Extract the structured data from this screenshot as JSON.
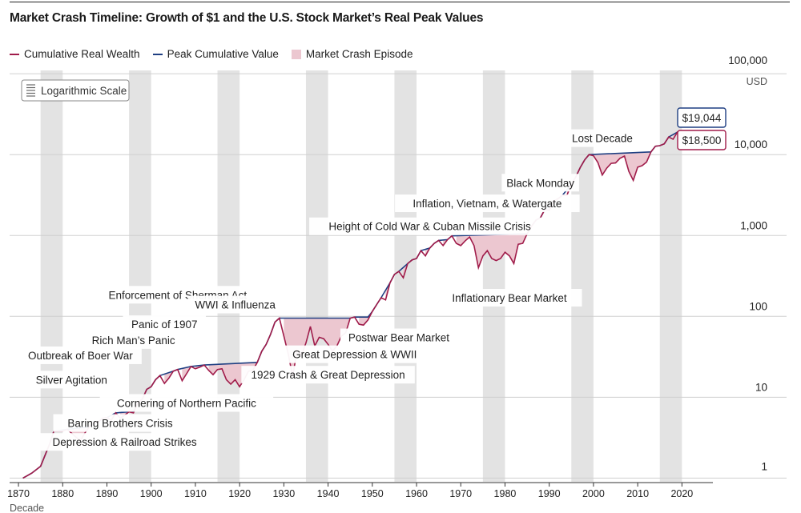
{
  "title": "Market Crash Timeline: Growth of $1 and the U.S. Stock Market’s Real Peak Values",
  "legend": {
    "real_wealth": "Cumulative Real Wealth",
    "peak_value": "Peak Cumulative Value",
    "crash_episode": "Market Crash Episode"
  },
  "colors": {
    "real_wealth": "#a01c4a",
    "peak_value": "#1f3f82",
    "crash_fill": "#ecc7d0",
    "decade_band": "#e3e3e3",
    "gridline": "#d0d0d0"
  },
  "scale_button": {
    "label": "Logarithmic Scale",
    "icon": "list-lines-icon"
  },
  "chart_data": {
    "type": "line",
    "title": "Market Crash Timeline: Growth of $1 and the U.S. Stock Market’s Real Peak Values",
    "xlabel": "Decade",
    "ylabel": "USD",
    "yscale": "log",
    "xlim": [
      1868,
      2027
    ],
    "ylim": [
      0.9,
      110000
    ],
    "grid": true,
    "legend_position": "top-left",
    "x_ticks": [
      1870,
      1880,
      1890,
      1900,
      1910,
      1920,
      1930,
      1940,
      1950,
      1960,
      1970,
      1980,
      1990,
      2000,
      2010,
      2020
    ],
    "x_tick_labels": [
      "1870",
      "1880",
      "1890",
      "1900",
      "1910",
      "1920",
      "1930",
      "1940",
      "1950",
      "1960",
      "1970",
      "1980",
      "1990",
      "2000",
      "2010",
      "2020"
    ],
    "y_ticks": [
      1,
      10,
      100,
      1000,
      10000,
      100000
    ],
    "y_tick_labels": [
      "1",
      "10",
      "100",
      "1,000",
      "10,000",
      "100,000"
    ],
    "y_unit_label": "USD",
    "end_labels": {
      "peak": "$19,044",
      "real": "$18,500"
    },
    "end_values": {
      "peak": 19044,
      "real": 18500
    },
    "series": [
      {
        "name": "Cumulative Real Wealth",
        "points": [
          [
            1871,
            1.0
          ],
          [
            1873,
            1.15
          ],
          [
            1875,
            1.4
          ],
          [
            1877,
            2.6
          ],
          [
            1878,
            3.8
          ],
          [
            1880,
            3.8
          ],
          [
            1881,
            4.0
          ],
          [
            1882,
            3.6
          ],
          [
            1883,
            3.2
          ],
          [
            1884,
            2.9
          ],
          [
            1885,
            3.6
          ],
          [
            1886,
            4.3
          ],
          [
            1887,
            4.8
          ],
          [
            1888,
            4.9
          ],
          [
            1889,
            5.5
          ],
          [
            1890,
            5.6
          ],
          [
            1891,
            5.2
          ],
          [
            1892,
            6.4
          ],
          [
            1893,
            5.5
          ],
          [
            1894,
            6.0
          ],
          [
            1895,
            6.6
          ],
          [
            1896,
            6.4
          ],
          [
            1897,
            8.5
          ],
          [
            1898,
            9.5
          ],
          [
            1899,
            12.5
          ],
          [
            1900,
            13.5
          ],
          [
            1901,
            16.5
          ],
          [
            1902,
            18.5
          ],
          [
            1903,
            14.8
          ],
          [
            1904,
            17.2
          ],
          [
            1905,
            21.0
          ],
          [
            1906,
            22.0
          ],
          [
            1907,
            16.0
          ],
          [
            1908,
            19.5
          ],
          [
            1909,
            24.0
          ],
          [
            1910,
            22.5
          ],
          [
            1911,
            23.5
          ],
          [
            1912,
            25.0
          ],
          [
            1913,
            21.5
          ],
          [
            1914,
            19.0
          ],
          [
            1915,
            22.0
          ],
          [
            1916,
            22.5
          ],
          [
            1917,
            16.5
          ],
          [
            1918,
            14.5
          ],
          [
            1919,
            16.5
          ],
          [
            1920,
            13.5
          ],
          [
            1921,
            16.5
          ],
          [
            1922,
            21.0
          ],
          [
            1923,
            21.5
          ],
          [
            1924,
            27.0
          ],
          [
            1925,
            37.0
          ],
          [
            1926,
            45.0
          ],
          [
            1927,
            60.0
          ],
          [
            1928,
            85.0
          ],
          [
            1929,
            95.0
          ],
          [
            1930,
            57.0
          ],
          [
            1931,
            34.0
          ],
          [
            1932,
            18.0
          ],
          [
            1933,
            38.0
          ],
          [
            1934,
            33.0
          ],
          [
            1935,
            47.0
          ],
          [
            1936,
            75.0
          ],
          [
            1937,
            43.0
          ],
          [
            1938,
            55.0
          ],
          [
            1939,
            53.0
          ],
          [
            1940,
            45.0
          ],
          [
            1941,
            37.0
          ],
          [
            1942,
            43.0
          ],
          [
            1943,
            57.0
          ],
          [
            1944,
            63.0
          ],
          [
            1945,
            95.0
          ],
          [
            1946,
            98.0
          ],
          [
            1947,
            80.0
          ],
          [
            1948,
            78.0
          ],
          [
            1949,
            90.0
          ],
          [
            1950,
            115.0
          ],
          [
            1951,
            140.0
          ],
          [
            1952,
            170.0
          ],
          [
            1953,
            160.0
          ],
          [
            1954,
            260.0
          ],
          [
            1955,
            330.0
          ],
          [
            1956,
            360.0
          ],
          [
            1957,
            300.0
          ],
          [
            1958,
            450.0
          ],
          [
            1959,
            500.0
          ],
          [
            1960,
            520.0
          ],
          [
            1961,
            650.0
          ],
          [
            1962,
            560.0
          ],
          [
            1963,
            700.0
          ],
          [
            1964,
            800.0
          ],
          [
            1965,
            870.0
          ],
          [
            1966,
            750.0
          ],
          [
            1967,
            890.0
          ],
          [
            1968,
            990.0
          ],
          [
            1969,
            800.0
          ],
          [
            1970,
            750.0
          ],
          [
            1971,
            860.0
          ],
          [
            1972,
            960.0
          ],
          [
            1973,
            750.0
          ],
          [
            1974,
            400.0
          ],
          [
            1975,
            560.0
          ],
          [
            1976,
            650.0
          ],
          [
            1977,
            520.0
          ],
          [
            1978,
            490.0
          ],
          [
            1979,
            520.0
          ],
          [
            1980,
            620.0
          ],
          [
            1981,
            560.0
          ],
          [
            1982,
            450.0
          ],
          [
            1983,
            780.0
          ],
          [
            1984,
            800.0
          ],
          [
            1985,
            1050.0
          ],
          [
            1986,
            1300.0
          ],
          [
            1987,
            1550.0
          ],
          [
            1988,
            1650.0
          ],
          [
            1989,
            2100.0
          ],
          [
            1990,
            2050.0
          ],
          [
            1991,
            2650.0
          ],
          [
            1992,
            2850.0
          ],
          [
            1993,
            3150.0
          ],
          [
            1994,
            3150.0
          ],
          [
            1995,
            4300.0
          ],
          [
            1996,
            5300.0
          ],
          [
            1997,
            6900.0
          ],
          [
            1998,
            8600.0
          ],
          [
            1999,
            10000.0
          ],
          [
            2000,
            9700.0
          ],
          [
            2001,
            8000.0
          ],
          [
            2002,
            5600.0
          ],
          [
            2003,
            6800.0
          ],
          [
            2004,
            7800.0
          ],
          [
            2005,
            7900.0
          ],
          [
            2006,
            9000.0
          ],
          [
            2007,
            9600.0
          ],
          [
            2008,
            6200.0
          ],
          [
            2009,
            4800.0
          ],
          [
            2010,
            7000.0
          ],
          [
            2011,
            7300.0
          ],
          [
            2012,
            8100.0
          ],
          [
            2013,
            10800.0
          ],
          [
            2014,
            12700.0
          ],
          [
            2015,
            12900.0
          ],
          [
            2016,
            13600.0
          ],
          [
            2017,
            16500.0
          ],
          [
            2018,
            15500.0
          ],
          [
            2019,
            19044.0
          ],
          [
            2020,
            18500.0
          ]
        ]
      },
      {
        "name": "Peak Cumulative Value",
        "points": [
          [
            1871,
            1.0
          ],
          [
            1873,
            1.15
          ],
          [
            1875,
            1.4
          ],
          [
            1877,
            2.6
          ],
          [
            1878,
            3.8
          ],
          [
            1881,
            4.0
          ],
          [
            1886,
            4.3
          ],
          [
            1887,
            4.8
          ],
          [
            1888,
            4.9
          ],
          [
            1889,
            5.5
          ],
          [
            1890,
            5.6
          ],
          [
            1892,
            6.4
          ],
          [
            1895,
            6.6
          ],
          [
            1896,
            6.6
          ],
          [
            1897,
            8.5
          ],
          [
            1898,
            9.5
          ],
          [
            1899,
            12.5
          ],
          [
            1900,
            13.5
          ],
          [
            1901,
            16.5
          ],
          [
            1902,
            18.5
          ],
          [
            1905,
            21.0
          ],
          [
            1906,
            22.0
          ],
          [
            1909,
            24.0
          ],
          [
            1912,
            25.0
          ],
          [
            1924,
            27.0
          ],
          [
            1925,
            37.0
          ],
          [
            1926,
            45.0
          ],
          [
            1927,
            60.0
          ],
          [
            1928,
            85.0
          ],
          [
            1929,
            95.0
          ],
          [
            1945,
            95.0
          ],
          [
            1946,
            98.0
          ],
          [
            1949,
            98.0
          ],
          [
            1950,
            115.0
          ],
          [
            1951,
            140.0
          ],
          [
            1952,
            170.0
          ],
          [
            1954,
            260.0
          ],
          [
            1955,
            330.0
          ],
          [
            1956,
            360.0
          ],
          [
            1958,
            450.0
          ],
          [
            1959,
            500.0
          ],
          [
            1960,
            520.0
          ],
          [
            1961,
            650.0
          ],
          [
            1963,
            700.0
          ],
          [
            1964,
            800.0
          ],
          [
            1965,
            870.0
          ],
          [
            1967,
            890.0
          ],
          [
            1968,
            990.0
          ],
          [
            1985,
            1050.0
          ],
          [
            1986,
            1300.0
          ],
          [
            1987,
            1550.0
          ],
          [
            1988,
            1650.0
          ],
          [
            1989,
            2100.0
          ],
          [
            1991,
            2650.0
          ],
          [
            1992,
            2850.0
          ],
          [
            1993,
            3150.0
          ],
          [
            1995,
            4300.0
          ],
          [
            1996,
            5300.0
          ],
          [
            1997,
            6900.0
          ],
          [
            1998,
            8600.0
          ],
          [
            1999,
            10000.0
          ],
          [
            2013,
            10800.0
          ],
          [
            2014,
            12700.0
          ],
          [
            2015,
            12900.0
          ],
          [
            2016,
            13600.0
          ],
          [
            2017,
            16500.0
          ],
          [
            2019,
            19044.0
          ],
          [
            2020,
            19044.0
          ]
        ]
      }
    ],
    "crash_episodes": [
      {
        "label": "Depression & Railroad Strikes",
        "start": 1881,
        "end": 1885
      },
      {
        "label": "Silver Agitation",
        "start": 1890,
        "end": 1892
      },
      {
        "label": "Baring Brothers Crisis",
        "start": 1892,
        "end": 1895
      },
      {
        "label": "Cornering of Northern Pacific",
        "start": 1902,
        "end": 1905
      },
      {
        "label": "Rich Man’s Panic",
        "start": 1906,
        "end": 1909
      },
      {
        "label": "WWI & Influenza",
        "start": 1912,
        "end": 1924
      },
      {
        "label": "1929 Crash & Great Depression",
        "start": 1929,
        "end": 1936
      },
      {
        "label": "Great Depression & WWII",
        "start": 1937,
        "end": 1945
      },
      {
        "label": "Postwar Bear Market",
        "start": 1946,
        "end": 1949
      },
      {
        "label": "Inflationary Bear Market",
        "start": 1968,
        "end": 1985
      },
      {
        "label": "Lost Decade",
        "start": 1999,
        "end": 2013
      },
      {
        "label": "Black Monday",
        "start": 1987,
        "end": 1988
      },
      {
        "label": "Height of Cold War & Cuban Missile Crisis",
        "start": 1961,
        "end": 1963
      },
      {
        "label": "Inflation, Vietnam, & Watergate",
        "start": 1973,
        "end": 1976
      },
      {
        "label": "Enforcement of Sherman Act",
        "start": 1906,
        "end": 1908
      },
      {
        "label": "Panic of 1907",
        "start": 1906,
        "end": 1908
      },
      {
        "label": "Outbreak of Boer War",
        "start": 1899,
        "end": 1900
      }
    ],
    "annotations": [
      {
        "text": "Lost Decade",
        "x": 2002,
        "y": 16000
      },
      {
        "text": "Black Monday",
        "x": 1988,
        "y": 4500
      },
      {
        "text": "Inflation, Vietnam, & Watergate",
        "x": 1976,
        "y": 2500
      },
      {
        "text": "Height of Cold War & Cuban Missile Crisis",
        "x": 1963,
        "y": 1300
      },
      {
        "text": "Inflationary Bear Market",
        "x": 1981,
        "y": 170
      },
      {
        "text": "Enforcement of Sherman Act",
        "x": 1906,
        "y": 185
      },
      {
        "text": "WWI & Influenza",
        "x": 1919,
        "y": 140
      },
      {
        "text": "Panic of 1907",
        "x": 1903,
        "y": 80
      },
      {
        "text": "Rich Man’s Panic",
        "x": 1896,
        "y": 51
      },
      {
        "text": "Postwar Bear Market",
        "x": 1956,
        "y": 55
      },
      {
        "text": "Great Depression & WWII",
        "x": 1946,
        "y": 34
      },
      {
        "text": "Outbreak of Boer War",
        "x": 1884,
        "y": 33
      },
      {
        "text": "1929 Crash & Great Depression",
        "x": 1940,
        "y": 19
      },
      {
        "text": "Silver Agitation",
        "x": 1882,
        "y": 16.5
      },
      {
        "text": "Cornering of Northern Pacific",
        "x": 1908,
        "y": 8.5
      },
      {
        "text": "Baring Brothers Crisis",
        "x": 1893,
        "y": 4.8
      },
      {
        "text": "Depression & Railroad Strikes",
        "x": 1894,
        "y": 2.8
      }
    ]
  }
}
